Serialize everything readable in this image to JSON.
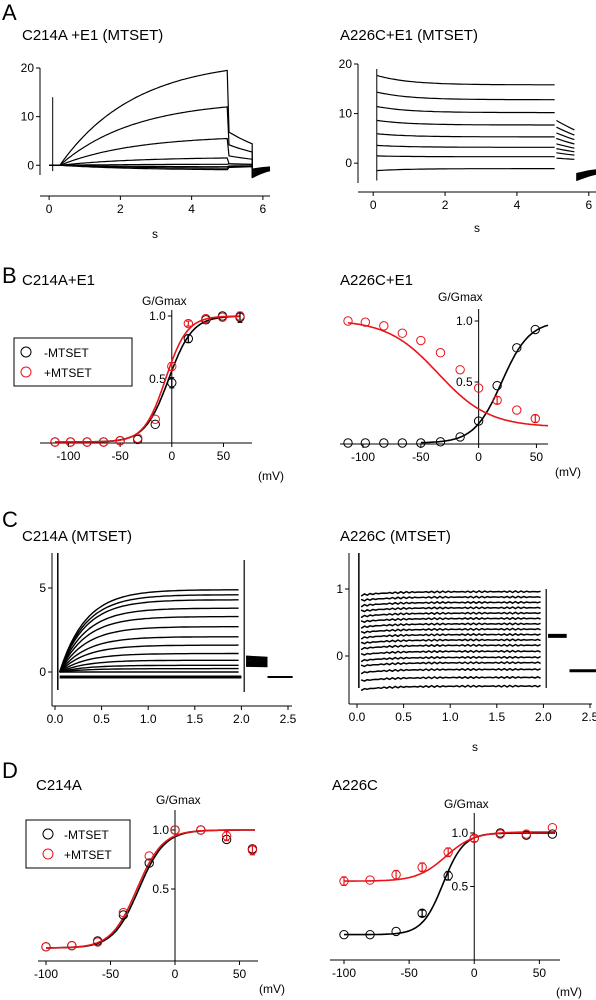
{
  "panels": {
    "A": {
      "letter": "A",
      "left": {
        "title": "C214A +E1 (MTSET)",
        "xlabel": "s",
        "xticks": [
          "0",
          "2",
          "4",
          "6"
        ],
        "yticks": [
          "0",
          "10",
          "20"
        ]
      },
      "right": {
        "title": "A226C+E1 (MTSET)",
        "xlabel": "s",
        "xticks": [
          "0",
          "2",
          "4",
          "6"
        ],
        "yticks": [
          "0",
          "10",
          "20"
        ]
      }
    },
    "B": {
      "letter": "B",
      "left": {
        "title": "C214A+E1",
        "ylabel": "G/Gmax",
        "xlabel": "(mV)",
        "xticks": [
          "-100",
          "-50",
          "0",
          "50"
        ],
        "yticks": [
          "0.5",
          "1.0"
        ]
      },
      "right": {
        "title": "A226C+E1",
        "ylabel": "G/Gmax",
        "xlabel": "(mV)",
        "xticks": [
          "-100",
          "-50",
          "0",
          "50"
        ],
        "yticks": [
          "0.5",
          "1.0"
        ]
      },
      "legend": [
        "-MTSET",
        "+MTSET"
      ]
    },
    "C": {
      "letter": "C",
      "left": {
        "title": "C214A (MTSET)",
        "xticks": [
          "0.0",
          "0.5",
          "1.0",
          "1.5",
          "2.0",
          "2.5"
        ],
        "yticks": [
          "0",
          "5"
        ]
      },
      "right": {
        "title": "A226C (MTSET)",
        "xlabel": "s",
        "xticks": [
          "0.0",
          "0.5",
          "1.0",
          "1.5",
          "2.0",
          "2.5"
        ],
        "yticks": [
          "0",
          "1"
        ]
      }
    },
    "D": {
      "letter": "D",
      "left": {
        "title": "C214A",
        "ylabel": "G/Gmax",
        "xlabel": "(mV)",
        "xticks": [
          "-100",
          "-50",
          "0",
          "50"
        ],
        "yticks": [
          "0.5",
          "1.0"
        ]
      },
      "right": {
        "title": "A226C",
        "ylabel": "G/Gmax",
        "xlabel": "(mV)",
        "xticks": [
          "-100",
          "-50",
          "0",
          "50"
        ],
        "yticks": [
          "0.5",
          "1.0"
        ]
      },
      "legend": [
        "-MTSET",
        "+MTSET"
      ]
    }
  },
  "colors": {
    "minus": "#000000",
    "plus": "#e8141b"
  },
  "chart_data": [
    {
      "panel": "A-left",
      "type": "line",
      "xlim": [
        -0.2,
        6.2
      ],
      "ylim": [
        -2,
        20
      ],
      "series_description": "voltage-clamp current traces, family of steps",
      "steady_values_at_5s": [
        19.5,
        12,
        5.5,
        1.5,
        0.2,
        -0.3,
        -0.6,
        -0.9
      ]
    },
    {
      "panel": "A-right",
      "type": "line",
      "xlim": [
        -0.2,
        6.2
      ],
      "ylim": [
        -4,
        20
      ],
      "steady_values_at_5s": [
        15.8,
        12.8,
        10.2,
        7.7,
        5.3,
        3.2,
        1.3,
        -1.1
      ]
    },
    {
      "panel": "B-left",
      "type": "scatter",
      "series": [
        {
          "name": "-MTSET",
          "x": [
            -113,
            -98,
            -82,
            -66,
            -50,
            -33,
            -16,
            0,
            16,
            33,
            49,
            66
          ],
          "y": [
            0,
            0,
            0,
            0,
            0.01,
            0.02,
            0.14,
            0.47,
            0.82,
            0.97,
            1.0,
            0.99
          ]
        },
        {
          "name": "+MTSET",
          "x": [
            -113,
            -98,
            -82,
            -66,
            -50,
            -33,
            -16,
            0,
            16,
            33,
            49,
            66
          ],
          "y": [
            0,
            0,
            0,
            0,
            0.01,
            0.03,
            0.18,
            0.6,
            0.94,
            0.98,
            0.99,
            1.0
          ]
        }
      ],
      "xlim": [
        -122,
        66
      ],
      "ylim": [
        0,
        1.05
      ]
    },
    {
      "panel": "B-right",
      "type": "scatter",
      "series": [
        {
          "name": "-MTSET",
          "x": [
            -113,
            -98,
            -82,
            -66,
            -50,
            -33,
            -16,
            0,
            16,
            33,
            49
          ],
          "y": [
            0,
            0,
            0,
            0,
            0,
            0.01,
            0.05,
            0.18,
            0.47,
            0.78,
            0.93
          ]
        },
        {
          "name": "+MTSET",
          "x": [
            -113,
            -98,
            -82,
            -66,
            -50,
            -33,
            -16,
            0,
            16,
            33,
            49
          ],
          "y": [
            1.0,
            0.99,
            0.96,
            0.9,
            0.84,
            0.74,
            0.6,
            0.45,
            0.35,
            0.27,
            0.2
          ]
        }
      ],
      "xlim": [
        -122,
        66
      ],
      "ylim": [
        0,
        1.05
      ]
    },
    {
      "panel": "C-left",
      "type": "line",
      "xlim": [
        -0.05,
        2.6
      ],
      "ylim": [
        -0.6,
        5.8
      ],
      "steady_values_at_2s": [
        4.9,
        4.6,
        4.3,
        3.8,
        3.3,
        2.7,
        2.1,
        1.6,
        1.1,
        0.7,
        0.4,
        0.2,
        0
      ]
    },
    {
      "panel": "C-right",
      "type": "line",
      "xlim": [
        -0.05,
        2.6
      ],
      "ylim": [
        -0.6,
        1.2
      ],
      "steady_values_at_2s": [
        0.96,
        0.88,
        0.8,
        0.72,
        0.64,
        0.56,
        0.48,
        0.4,
        0.32,
        0.24,
        0.16,
        0.07,
        -0.02,
        -0.1,
        -0.2,
        -0.32,
        -0.45
      ]
    },
    {
      "panel": "D-left",
      "type": "scatter",
      "series": [
        {
          "name": "-MTSET",
          "x": [
            -100,
            -80,
            -60,
            -40,
            -20,
            0,
            20,
            40,
            60
          ],
          "y": [
            0.01,
            0.02,
            0.06,
            0.28,
            0.72,
            1.0,
            1.0,
            0.92,
            0.84
          ]
        },
        {
          "name": "+MTSET",
          "x": [
            -100,
            -80,
            -60,
            -40,
            -20,
            0,
            20,
            40,
            60
          ],
          "y": [
            0.01,
            0.02,
            0.05,
            0.3,
            0.78,
            1.0,
            1.0,
            0.95,
            0.83
          ]
        }
      ],
      "xlim": [
        -100,
        62
      ],
      "ylim": [
        0,
        1.1
      ]
    },
    {
      "panel": "D-right",
      "type": "scatter",
      "series": [
        {
          "name": "-MTSET",
          "x": [
            -100,
            -80,
            -60,
            -40,
            -20,
            0,
            20,
            40,
            60
          ],
          "y": [
            0.05,
            0.05,
            0.08,
            0.25,
            0.6,
            0.95,
            1.0,
            0.98,
            0.99
          ]
        },
        {
          "name": "+MTSET",
          "x": [
            -100,
            -80,
            -60,
            -40,
            -20,
            0,
            20,
            40,
            60
          ],
          "y": [
            0.55,
            0.56,
            0.61,
            0.68,
            0.82,
            0.95,
            0.99,
            0.99,
            1.05
          ]
        }
      ],
      "xlim": [
        -100,
        62
      ],
      "ylim": [
        0,
        1.1
      ]
    }
  ]
}
